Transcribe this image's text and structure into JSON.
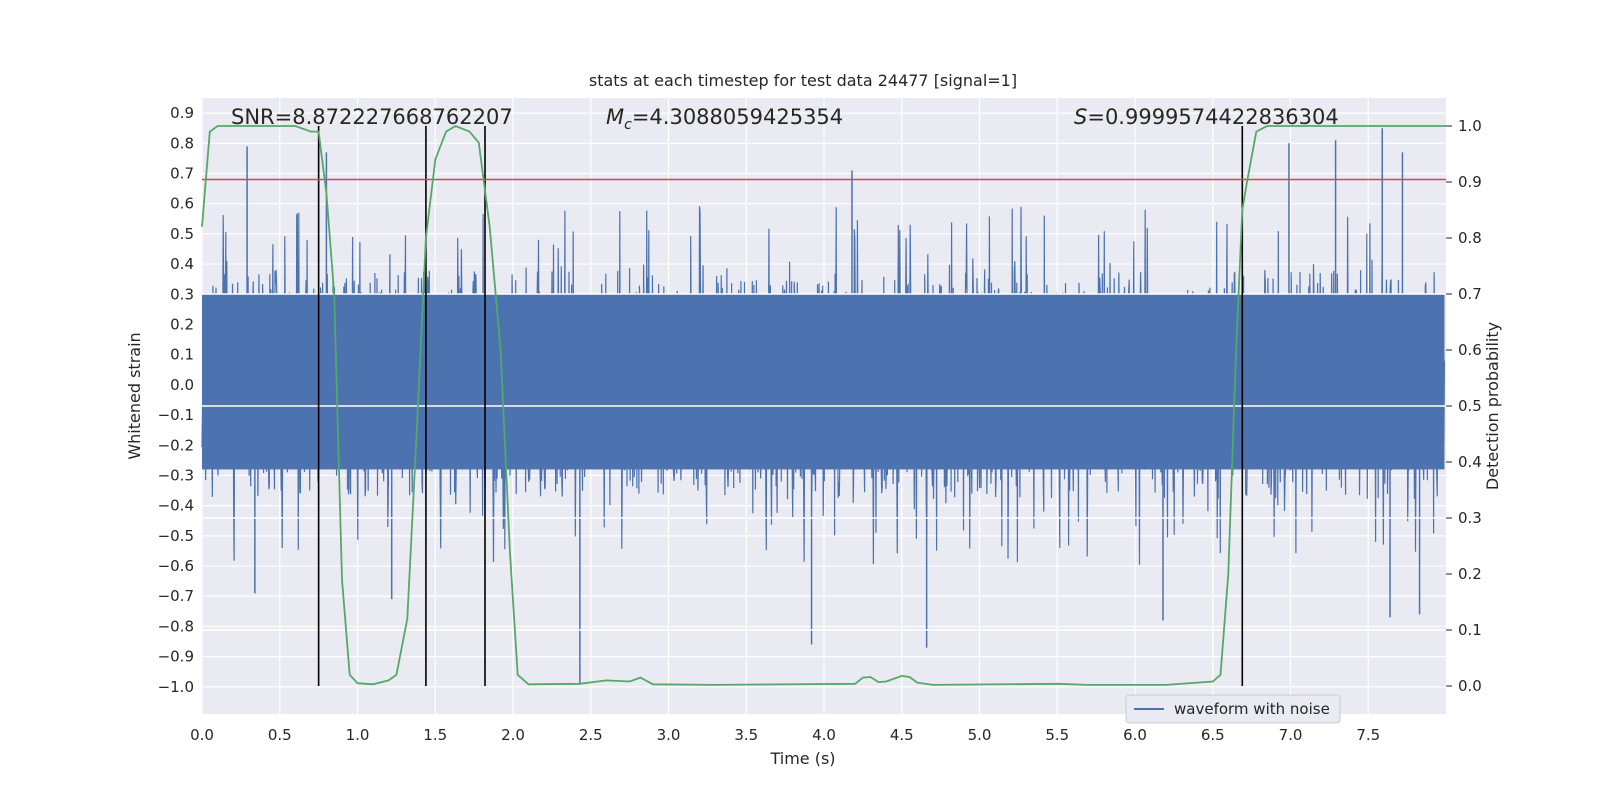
{
  "chart_data": {
    "type": "line",
    "title": "stats at each timestep for test data 24477 [signal=1]",
    "xlabel": "Time (s)",
    "ylabel_left": "Whitened strain",
    "ylabel_right": "Detection probability",
    "xlim": [
      0.0,
      8.0
    ],
    "ylim_left": [
      -1.09,
      0.95
    ],
    "ylim_right": [
      -0.05,
      1.05
    ],
    "xticks": [
      "0.0",
      "0.5",
      "1.0",
      "1.5",
      "2.0",
      "2.5",
      "3.0",
      "3.5",
      "4.0",
      "4.5",
      "5.0",
      "5.5",
      "6.0",
      "6.5",
      "7.0",
      "7.5"
    ],
    "yticks_left": [
      "0.9",
      "0.8",
      "0.7",
      "0.6",
      "0.5",
      "0.4",
      "0.3",
      "0.2",
      "0.1",
      "0.0",
      "−0.1",
      "−0.2",
      "−0.3",
      "−0.4",
      "−0.5",
      "−0.6",
      "−0.7",
      "−0.8",
      "−0.9",
      "−1.0"
    ],
    "yticks_right": [
      "1.0",
      "0.9",
      "0.8",
      "0.7",
      "0.6",
      "0.5",
      "0.4",
      "0.3",
      "0.2",
      "0.1",
      "0.0"
    ],
    "grid": true,
    "legend": {
      "position": "bottom-right",
      "entries": [
        "waveform with noise"
      ]
    },
    "annotations": {
      "snr": "SNR=8.872227668762207",
      "mc_symbol": "M",
      "mc_sub": "c",
      "mc_value": "=4.3088059425354",
      "s_symbol": "S",
      "s_value": "=0.9999574422836304"
    },
    "threshold_strain": 0.68,
    "vertical_lines_time": [
      0.75,
      1.44,
      1.82,
      6.69
    ],
    "series": [
      {
        "name": "waveform with noise",
        "axis": "left",
        "color": "#4c72b0",
        "description": "dense whitened strain noise, approx +-0.3 band with spikes up to +-0.8",
        "band_lower": -0.28,
        "band_upper": 0.3,
        "spikes_up": [
          [
            0.29,
            0.79
          ],
          [
            0.8,
            0.77
          ],
          [
            4.18,
            0.71
          ],
          [
            6.99,
            0.8
          ],
          [
            7.29,
            0.81
          ],
          [
            7.59,
            0.85
          ],
          [
            7.72,
            0.77
          ]
        ],
        "spikes_down": [
          [
            0.34,
            -0.69
          ],
          [
            1.22,
            -0.71
          ],
          [
            2.43,
            -0.99
          ],
          [
            3.92,
            -0.86
          ],
          [
            4.66,
            -0.87
          ],
          [
            6.18,
            -0.78
          ],
          [
            7.64,
            -0.77
          ],
          [
            7.83,
            -0.76
          ]
        ]
      },
      {
        "name": "detection probability",
        "axis": "right",
        "color": "#55a868",
        "points": [
          [
            0.0,
            0.82
          ],
          [
            0.05,
            0.99
          ],
          [
            0.1,
            1.0
          ],
          [
            0.6,
            1.0
          ],
          [
            0.7,
            0.99
          ],
          [
            0.75,
            0.99
          ],
          [
            0.8,
            0.88
          ],
          [
            0.85,
            0.7
          ],
          [
            0.9,
            0.19
          ],
          [
            0.95,
            0.02
          ],
          [
            1.0,
            0.005
          ],
          [
            1.1,
            0.003
          ],
          [
            1.2,
            0.01
          ],
          [
            1.25,
            0.02
          ],
          [
            1.32,
            0.12
          ],
          [
            1.38,
            0.45
          ],
          [
            1.44,
            0.8
          ],
          [
            1.5,
            0.94
          ],
          [
            1.57,
            0.99
          ],
          [
            1.63,
            1.0
          ],
          [
            1.72,
            0.99
          ],
          [
            1.78,
            0.97
          ],
          [
            1.85,
            0.82
          ],
          [
            1.92,
            0.6
          ],
          [
            1.98,
            0.24
          ],
          [
            2.03,
            0.02
          ],
          [
            2.1,
            0.003
          ],
          [
            2.43,
            0.004
          ],
          [
            2.6,
            0.01
          ],
          [
            2.75,
            0.008
          ],
          [
            2.82,
            0.015
          ],
          [
            2.9,
            0.003
          ],
          [
            3.3,
            0.002
          ],
          [
            4.2,
            0.004
          ],
          [
            4.25,
            0.015
          ],
          [
            4.3,
            0.016
          ],
          [
            4.35,
            0.007
          ],
          [
            4.4,
            0.008
          ],
          [
            4.5,
            0.018
          ],
          [
            4.55,
            0.016
          ],
          [
            4.6,
            0.006
          ],
          [
            4.7,
            0.002
          ],
          [
            5.5,
            0.004
          ],
          [
            5.7,
            0.002
          ],
          [
            6.2,
            0.002
          ],
          [
            6.5,
            0.008
          ],
          [
            6.55,
            0.02
          ],
          [
            6.6,
            0.2
          ],
          [
            6.65,
            0.6
          ],
          [
            6.69,
            0.85
          ],
          [
            6.72,
            0.9
          ],
          [
            6.78,
            0.99
          ],
          [
            6.85,
            1.0
          ],
          [
            8.0,
            1.0
          ]
        ]
      }
    ]
  }
}
